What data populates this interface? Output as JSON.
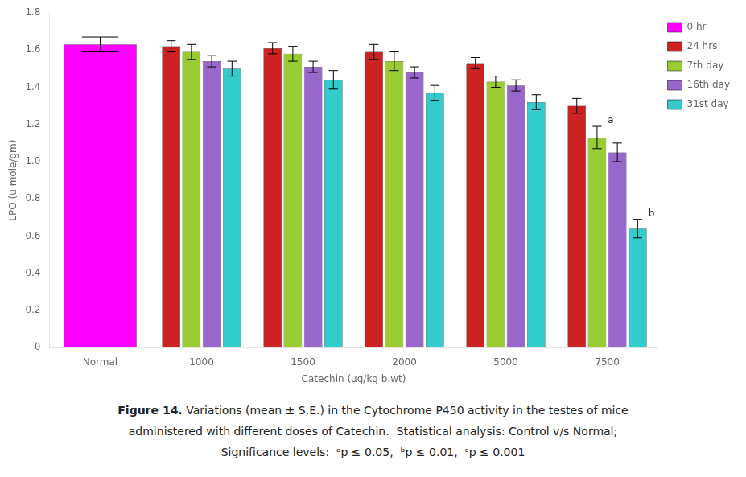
{
  "chart_data": {
    "type": "bar",
    "categories": [
      "Normal",
      "1000",
      "1500",
      "2000",
      "5000",
      "7500"
    ],
    "series": [
      {
        "name": "0 hr",
        "color": "#FF00FF",
        "values": [
          1.63,
          null,
          null,
          null,
          null,
          null
        ],
        "errors": [
          0.04,
          null,
          null,
          null,
          null,
          null
        ]
      },
      {
        "name": "24 hrs",
        "color": "#CC2222",
        "values": [
          null,
          1.62,
          1.61,
          1.59,
          1.53,
          1.3
        ],
        "errors": [
          null,
          0.03,
          0.03,
          0.04,
          0.03,
          0.04
        ]
      },
      {
        "name": "7th day",
        "color": "#99CC33",
        "values": [
          null,
          1.59,
          1.58,
          1.54,
          1.43,
          1.13
        ],
        "errors": [
          null,
          0.04,
          0.04,
          0.05,
          0.03,
          0.06
        ]
      },
      {
        "name": "16th day",
        "color": "#9966CC",
        "values": [
          null,
          1.54,
          1.51,
          1.48,
          1.41,
          1.05
        ],
        "errors": [
          null,
          0.03,
          0.03,
          0.03,
          0.03,
          0.05
        ]
      },
      {
        "name": "31st day",
        "color": "#33CCCC",
        "values": [
          null,
          1.5,
          1.44,
          1.37,
          1.32,
          0.64
        ],
        "errors": [
          null,
          0.04,
          0.05,
          0.04,
          0.04,
          0.05
        ]
      }
    ],
    "x_label": "Catechin (μg/kg b.wt)",
    "y_label": "LPO (u mole/gm)",
    "ylim": [
      0,
      1.8
    ],
    "yticks": [
      0,
      0.2,
      0.4,
      0.6,
      0.8,
      {
        "value": 1.0,
        "label": "1.0"
      },
      1.2,
      1.4,
      1.6,
      1.8
    ],
    "grid": false,
    "legend": "right",
    "annotations": [
      {
        "text": "a",
        "category": "7500",
        "series": "7th day"
      },
      {
        "text": "b",
        "category": "7500",
        "series": "31st day"
      }
    ],
    "caption": [
      {
        "bold": "Figure 14.",
        "text": " Variations (mean ± S.E.) in the Cytochrome P450 activity in the testes of mice"
      },
      {
        "text": "administered with different doses of Catechin.  Statistical analysis: Control v/s Normal;"
      },
      {
        "text": "Significance levels:  ᵃp ≤ 0.05,  ᵇp ≤ 0.01,  ᶜp ≤ 0.001"
      }
    ]
  }
}
